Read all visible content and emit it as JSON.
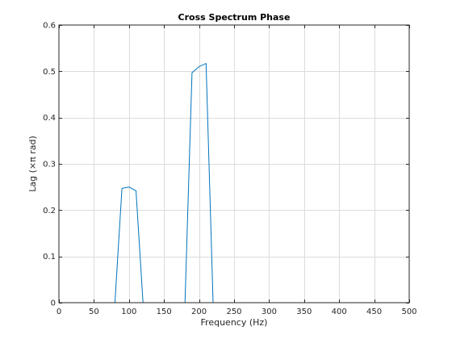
{
  "chart_data": {
    "type": "line",
    "title": "Cross Spectrum Phase",
    "xlabel": "Frequency (Hz)",
    "ylabel": "Lag (×π rad)",
    "xlim": [
      0,
      500
    ],
    "ylim": [
      0,
      0.6
    ],
    "x_ticks": [
      0,
      50,
      100,
      150,
      200,
      250,
      300,
      350,
      400,
      450,
      500
    ],
    "y_ticks": [
      0,
      0.1,
      0.2,
      0.3,
      0.4,
      0.5,
      0.6
    ],
    "x_tick_labels": [
      "0",
      "50",
      "100",
      "150",
      "200",
      "250",
      "300",
      "350",
      "400",
      "450",
      "500"
    ],
    "y_tick_labels": [
      "0",
      "0.1",
      "0.2",
      "0.3",
      "0.4",
      "0.5",
      "0.6"
    ],
    "grid": true,
    "series": [
      {
        "color": "#0072BD",
        "x": [
          0,
          80,
          90,
          100,
          110,
          120,
          180,
          190,
          200,
          210,
          220,
          500
        ],
        "y": [
          0,
          0,
          0.247,
          0.25,
          0.242,
          0,
          0,
          0.497,
          0.51,
          0.517,
          0,
          0
        ]
      }
    ]
  }
}
